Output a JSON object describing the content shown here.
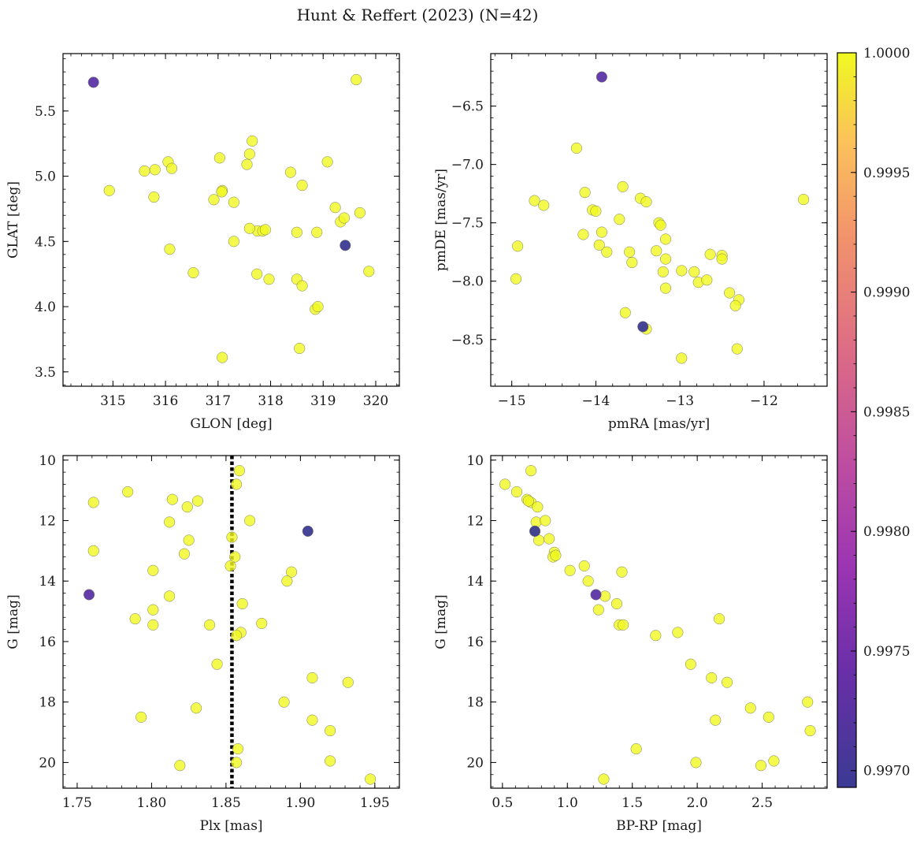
{
  "figure": {
    "title": "Hunt & Reffert (2023) (N=42)"
  },
  "colorbar": {
    "colormap": "plasma",
    "range": [
      0.99693,
      1.0
    ],
    "tick_labels": [
      "0.9970",
      "0.9975",
      "0.9980",
      "0.9985",
      "0.9990",
      "0.9995",
      "1.0000"
    ],
    "tick_values": [
      0.997,
      0.9975,
      0.998,
      0.9985,
      0.999,
      0.9995,
      1.0
    ]
  },
  "colors": {
    "member": "#f0f921",
    "low_prob_a": "#3b3a93",
    "low_prob_b": "#5c35a8",
    "vline": "#000000"
  },
  "chart_data": [
    {
      "type": "scatter",
      "xlabel": "GLON [deg]",
      "ylabel": "GLAT [deg]",
      "xlim": [
        314.05,
        320.45
      ],
      "ylim": [
        3.39,
        5.94
      ],
      "x_ticks": [
        315,
        316,
        317,
        318,
        319,
        320
      ],
      "y_ticks": [
        3.5,
        4.0,
        4.5,
        5.0,
        5.5
      ],
      "x_tick_labels": [
        "315",
        "316",
        "317",
        "318",
        "319",
        "320"
      ],
      "y_tick_labels": [
        "3.5",
        "4.0",
        "4.5",
        "5.0",
        "5.5"
      ],
      "x": [
        314.63,
        319.63,
        315.6,
        315.8,
        316.05,
        316.12,
        314.93,
        315.78,
        316.08,
        316.53,
        317.03,
        317.08,
        316.92,
        317.3,
        317.07,
        317.3,
        317.55,
        317.6,
        317.65,
        317.75,
        317.85,
        317.9,
        317.6,
        317.97,
        318.38,
        318.5,
        318.6,
        318.5,
        318.6,
        318.88,
        318.85,
        318.9,
        319.08,
        319.23,
        319.33,
        319.4,
        319.7,
        319.87,
        319.42,
        318.55,
        317.08,
        317.74
      ],
      "y": [
        5.72,
        5.74,
        5.04,
        5.05,
        5.11,
        5.06,
        4.89,
        4.84,
        4.44,
        4.26,
        5.14,
        4.89,
        4.82,
        4.8,
        4.88,
        4.5,
        5.09,
        5.17,
        5.27,
        4.58,
        4.58,
        4.59,
        4.6,
        4.21,
        5.03,
        4.57,
        4.93,
        4.21,
        4.16,
        4.57,
        3.98,
        4.0,
        5.11,
        4.76,
        4.65,
        4.68,
        4.72,
        4.27,
        4.47,
        3.68,
        3.61,
        4.25
      ],
      "prob": [
        0.99726,
        1,
        1,
        1,
        1,
        1,
        1,
        1,
        1,
        1,
        1,
        1,
        1,
        1,
        1,
        1,
        1,
        1,
        1,
        1,
        1,
        1,
        1,
        1,
        1,
        1,
        1,
        1,
        1,
        1,
        1,
        1,
        1,
        1,
        1,
        1,
        1,
        1,
        0.99696,
        1,
        1,
        1
      ]
    },
    {
      "type": "scatter",
      "xlabel": "pmRA [mas/yr]",
      "ylabel": "pmDE [mas/yr]",
      "xlim": [
        -15.25,
        -11.25
      ],
      "ylim": [
        -8.9,
        -6.05
      ],
      "x_ticks": [
        -15,
        -14,
        -13,
        -12
      ],
      "y_ticks": [
        -8.5,
        -8.0,
        -7.5,
        -7.0,
        -6.5
      ],
      "x_tick_labels": [
        "−15",
        "−14",
        "−13",
        "−12"
      ],
      "y_tick_labels": [
        "−8.5",
        "−8.0",
        "−7.5",
        "−7.0",
        "−6.5"
      ],
      "x": [
        -13.93,
        -14.23,
        -14.73,
        -14.62,
        -14.13,
        -13.68,
        -13.47,
        -13.4,
        -14.04,
        -14.0,
        -13.72,
        -14.15,
        -13.93,
        -13.25,
        -13.23,
        -13.96,
        -13.87,
        -13.17,
        -13.6,
        -13.57,
        -13.28,
        -13.17,
        -13.2,
        -13.17,
        -12.98,
        -12.83,
        -12.78,
        -12.68,
        -12.64,
        -12.5,
        -12.5,
        -12.41,
        -12.3,
        -12.34,
        -12.32,
        -11.53,
        -14.93,
        -14.95,
        -13.65,
        -13.44,
        -13.4,
        -12.98
      ],
      "y": [
        -6.25,
        -6.86,
        -7.31,
        -7.35,
        -7.24,
        -7.19,
        -7.29,
        -7.32,
        -7.39,
        -7.4,
        -7.47,
        -7.6,
        -7.58,
        -7.5,
        -7.52,
        -7.69,
        -7.75,
        -7.64,
        -7.75,
        -7.84,
        -7.74,
        -7.81,
        -7.92,
        -8.06,
        -7.91,
        -7.92,
        -8.01,
        -7.99,
        -7.77,
        -7.78,
        -7.81,
        -8.1,
        -8.16,
        -8.21,
        -8.58,
        -7.3,
        -7.7,
        -7.98,
        -8.27,
        -8.39,
        -8.41,
        -8.66
      ],
      "prob": [
        0.99726,
        1,
        1,
        1,
        1,
        1,
        1,
        1,
        1,
        1,
        1,
        1,
        1,
        1,
        1,
        1,
        1,
        1,
        1,
        1,
        1,
        1,
        1,
        1,
        1,
        1,
        1,
        1,
        1,
        1,
        1,
        1,
        1,
        1,
        1,
        1,
        1,
        1,
        1,
        0.99696,
        1,
        1
      ]
    },
    {
      "type": "scatter",
      "xlabel": "Plx [mas]",
      "ylabel": "G [mag]",
      "xlim": [
        1.7405,
        1.9665
      ],
      "ylim": [
        20.85,
        9.85
      ],
      "y_inverted": true,
      "x_ticks": [
        1.75,
        1.8,
        1.85,
        1.9,
        1.95
      ],
      "y_ticks": [
        10,
        12,
        14,
        16,
        18,
        20
      ],
      "x_tick_labels": [
        "1.75",
        "1.80",
        "1.85",
        "1.90",
        "1.95"
      ],
      "y_tick_labels": [
        "10",
        "12",
        "14",
        "16",
        "18",
        "20"
      ],
      "vline": {
        "x": 1.854,
        "style": "dotted"
      },
      "x": [
        1.761,
        1.761,
        1.784,
        1.814,
        1.831,
        1.824,
        1.812,
        1.825,
        1.822,
        1.801,
        1.812,
        1.801,
        1.789,
        1.801,
        1.793,
        1.819,
        1.83,
        1.839,
        1.844,
        1.758,
        1.905,
        1.859,
        1.857,
        1.866,
        1.854,
        1.856,
        1.853,
        1.894,
        1.891,
        1.861,
        1.874,
        1.86,
        1.857,
        1.908,
        1.932,
        1.889,
        1.908,
        1.92,
        1.92,
        1.947,
        1.858,
        1.857
      ],
      "y": [
        11.4,
        13.0,
        11.05,
        11.3,
        11.35,
        11.55,
        12.05,
        12.65,
        13.1,
        13.65,
        14.5,
        14.95,
        15.25,
        15.45,
        18.5,
        20.1,
        18.2,
        15.45,
        16.75,
        14.45,
        12.35,
        10.35,
        10.8,
        12.0,
        12.55,
        13.2,
        13.5,
        13.7,
        14.0,
        14.75,
        15.4,
        15.7,
        15.8,
        17.2,
        17.35,
        18.0,
        18.6,
        18.95,
        19.95,
        20.55,
        19.55,
        20.0
      ],
      "prob": [
        1,
        1,
        1,
        1,
        1,
        1,
        1,
        1,
        1,
        1,
        1,
        1,
        1,
        1,
        1,
        1,
        1,
        1,
        1,
        0.99726,
        0.99696,
        1,
        1,
        1,
        1,
        1,
        1,
        1,
        1,
        1,
        1,
        1,
        1,
        1,
        1,
        1,
        1,
        1,
        1,
        1,
        1,
        1
      ]
    },
    {
      "type": "scatter",
      "xlabel": "BP-RP [mag]",
      "ylabel": "G [mag]",
      "xlim": [
        0.41,
        3.0
      ],
      "ylim": [
        20.85,
        9.85
      ],
      "y_inverted": true,
      "x_ticks": [
        0.5,
        1.0,
        1.5,
        2.0,
        2.5
      ],
      "y_ticks": [
        10,
        12,
        14,
        16,
        18,
        20
      ],
      "x_tick_labels": [
        "0.5",
        "1.0",
        "1.5",
        "2.0",
        "2.5"
      ],
      "y_tick_labels": [
        "10",
        "12",
        "14",
        "16",
        "18",
        "20"
      ],
      "x": [
        0.52,
        0.72,
        0.61,
        0.69,
        0.72,
        0.77,
        0.76,
        0.83,
        0.75,
        0.86,
        0.9,
        0.89,
        0.91,
        1.02,
        1.13,
        1.16,
        1.24,
        1.29,
        1.42,
        1.38,
        1.4,
        1.43,
        1.68,
        1.85,
        1.95,
        2.17,
        2.11,
        2.23,
        2.41,
        2.55,
        2.14,
        2.49,
        2.59,
        2.85,
        2.87,
        1.53,
        1.99,
        1.28,
        0.75,
        1.22,
        0.78,
        0.7
      ],
      "y": [
        10.8,
        10.35,
        11.05,
        11.3,
        11.4,
        11.55,
        12.05,
        12.0,
        12.35,
        12.6,
        13.05,
        13.2,
        13.15,
        13.65,
        13.5,
        14.0,
        14.95,
        14.5,
        13.7,
        14.75,
        15.45,
        15.45,
        15.8,
        15.7,
        16.75,
        15.25,
        17.2,
        17.35,
        18.2,
        18.5,
        18.6,
        20.1,
        19.95,
        18.0,
        18.95,
        19.55,
        20.0,
        20.55,
        12.35,
        14.45,
        12.65,
        11.35
      ],
      "prob": [
        1,
        1,
        1,
        1,
        1,
        1,
        1,
        1,
        0.99696,
        1,
        1,
        1,
        1,
        1,
        1,
        1,
        1,
        1,
        1,
        1,
        1,
        1,
        1,
        1,
        1,
        1,
        1,
        1,
        1,
        1,
        1,
        1,
        1,
        1,
        1,
        1,
        1,
        1,
        1,
        0.99726,
        1,
        1
      ]
    }
  ]
}
